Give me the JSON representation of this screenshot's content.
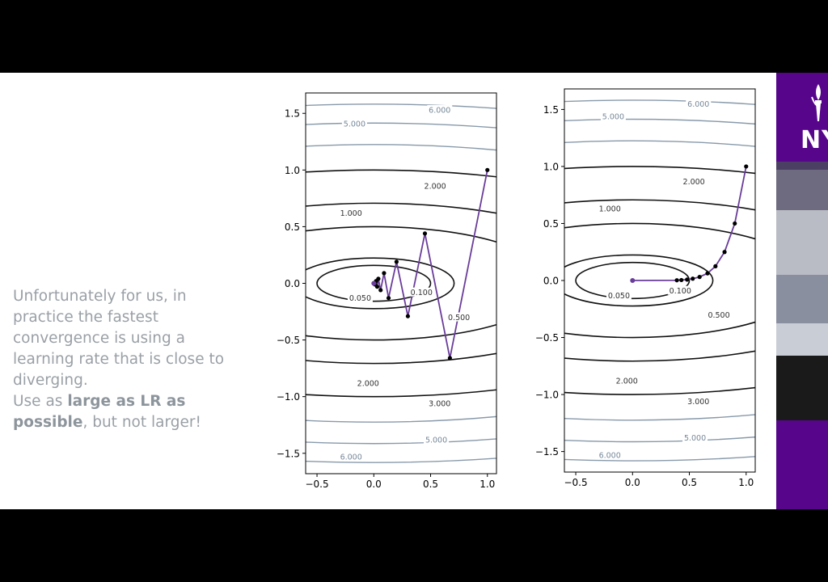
{
  "slide": {
    "text_line1": "Unfortunately for us, in",
    "text_line2": "practice the fastest",
    "text_line3": "convergence is using a",
    "text_line4": "learning rate that is close to",
    "text_line5": "diverging.",
    "text_use_as": "Use as ",
    "text_bold1": "large as LR as",
    "text_bold2": "possible",
    "text_tail": ", but not larger!"
  },
  "sidebar": {
    "logo_text": "NY"
  },
  "colors": {
    "brand_purple": "#57068c",
    "path_purple": "#6a3d9a",
    "contour_dark": "#111111",
    "contour_light": "#8899aa"
  },
  "chart_data": [
    {
      "type": "line",
      "title": "",
      "xlabel": "",
      "ylabel": "",
      "xlim": [
        -0.6,
        1.08
      ],
      "ylim": [
        -1.68,
        1.68
      ],
      "xticks": [
        "−0.5",
        "0.0",
        "0.5",
        "1.0"
      ],
      "yticks": [
        "1.5",
        "1.0",
        "0.5",
        "0.0",
        "−0.5",
        "−1.0",
        "−1.5"
      ],
      "contour_labels": [
        "6.000",
        "5.000",
        "2.000",
        "1.000",
        "0.100",
        "0.050",
        "0.500",
        "2.000",
        "3.000",
        "5.000",
        "6.000"
      ],
      "contour_levels": [
        0.05,
        0.1,
        0.5,
        1,
        2,
        3,
        4,
        5,
        6
      ],
      "grid": false,
      "series": [
        {
          "x": [
            1.0,
            0.67,
            0.45,
            0.3,
            0.2,
            0.13,
            0.09,
            0.06,
            0.04,
            0.03,
            0.02,
            0.01,
            0.0
          ],
          "y": [
            1.0,
            -0.66,
            0.44,
            -0.29,
            0.19,
            -0.13,
            0.09,
            -0.06,
            0.04,
            -0.03,
            0.02,
            -0.01,
            0.0
          ]
        }
      ]
    },
    {
      "type": "line",
      "title": "",
      "xlabel": "",
      "ylabel": "",
      "xlim": [
        -0.6,
        1.08
      ],
      "ylim": [
        -1.68,
        1.68
      ],
      "xticks": [
        "−0.5",
        "0.0",
        "0.5",
        "1.0"
      ],
      "yticks": [
        "1.5",
        "1.0",
        "0.5",
        "0.0",
        "−0.5",
        "−1.0",
        "−1.5"
      ],
      "contour_labels": [
        "6.000",
        "5.000",
        "2.000",
        "1.000",
        "0.100",
        "0.050",
        "0.500",
        "2.000",
        "3.000",
        "5.000",
        "6.000"
      ],
      "contour_levels": [
        0.05,
        0.1,
        0.5,
        1,
        2,
        3,
        4,
        5,
        6
      ],
      "grid": false,
      "series": [
        {
          "x": [
            1.0,
            0.9,
            0.81,
            0.73,
            0.66,
            0.59,
            0.53,
            0.48,
            0.43,
            0.39,
            0.0
          ],
          "y": [
            1.0,
            0.5,
            0.25,
            0.125,
            0.063,
            0.031,
            0.016,
            0.008,
            0.004,
            0.002,
            0.0
          ]
        }
      ]
    }
  ]
}
